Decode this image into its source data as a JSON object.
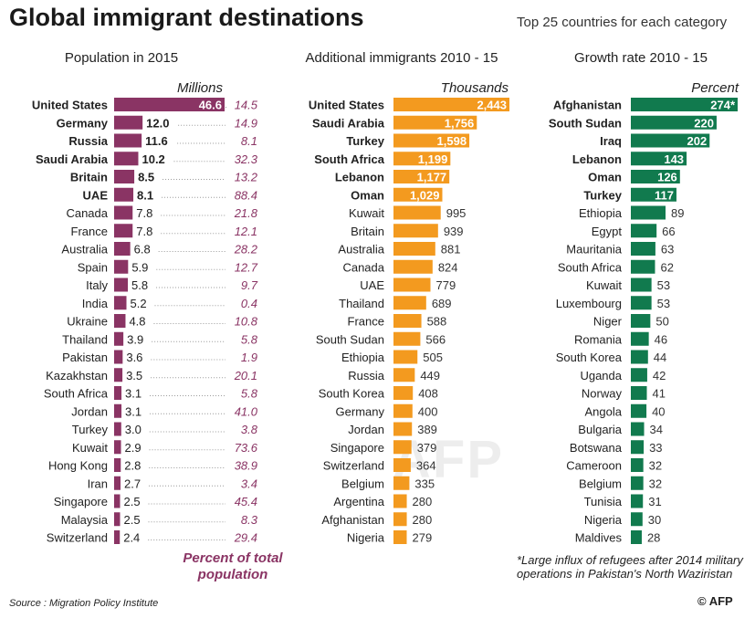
{
  "header": {
    "title": "Global immigrant destinations",
    "subtitle": "Top 25 countries for each category"
  },
  "footer": {
    "source": "Source : Migration Policy Institute",
    "credit": "© AFP",
    "watermark": "AFP",
    "footnote": "*Large influx of refugees after 2014 military operations in Pakistan's North Waziristan",
    "percent_note": "Percent of total population"
  },
  "colors": {
    "population": "#8a3464",
    "additional": "#f39a1f",
    "growth": "#117a4e",
    "pct_text": "#8a3464"
  },
  "chart_data": [
    {
      "type": "bar",
      "title": "Population in 2015",
      "unit_label": "Millions",
      "bold_top": 6,
      "categories": [
        "United States",
        "Germany",
        "Russia",
        "Saudi Arabia",
        "Britain",
        "UAE",
        "Canada",
        "France",
        "Australia",
        "Spain",
        "Italy",
        "India",
        "Ukraine",
        "Thailand",
        "Pakistan",
        "Kazakhstan",
        "South Africa",
        "Jordan",
        "Turkey",
        "Kuwait",
        "Hong Kong",
        "Iran",
        "Singapore",
        "Malaysia",
        "Switzerland"
      ],
      "values": [
        46.6,
        12.0,
        11.6,
        10.2,
        8.5,
        8.1,
        7.8,
        7.8,
        6.8,
        5.9,
        5.8,
        5.2,
        4.8,
        3.9,
        3.6,
        3.5,
        3.1,
        3.1,
        3.0,
        2.9,
        2.8,
        2.7,
        2.5,
        2.5,
        2.4
      ],
      "value_labels": [
        "46.6",
        "12.0",
        "11.6",
        "10.2",
        "8.5",
        "8.1",
        "7.8",
        "7.8",
        "6.8",
        "5.9",
        "5.8",
        "5.2",
        "4.8",
        "3.9",
        "3.6",
        "3.5",
        "3.1",
        "3.1",
        "3.0",
        "2.9",
        "2.8",
        "2.7",
        "2.5",
        "2.5",
        "2.4"
      ],
      "percent_of_population": [
        "14.5",
        "14.9",
        "8.1",
        "32.3",
        "13.2",
        "88.4",
        "21.8",
        "12.1",
        "28.2",
        "12.7",
        "9.7",
        "0.4",
        "10.8",
        "5.8",
        "1.9",
        "20.1",
        "5.8",
        "41.0",
        "3.8",
        "73.6",
        "38.9",
        "3.4",
        "45.4",
        "8.3",
        "29.4"
      ],
      "xlim": [
        0,
        46.6
      ]
    },
    {
      "type": "bar",
      "title": "Additional immigrants 2010 - 15",
      "unit_label": "Thousands",
      "bold_top": 6,
      "categories": [
        "United States",
        "Saudi Arabia",
        "Turkey",
        "South Africa",
        "Lebanon",
        "Oman",
        "Kuwait",
        "Britain",
        "Australia",
        "Canada",
        "UAE",
        "Thailand",
        "France",
        "South Sudan",
        "Ethiopia",
        "Russia",
        "South Korea",
        "Germany",
        "Jordan",
        "Singapore",
        "Switzerland",
        "Belgium",
        "Argentina",
        "Afghanistan",
        "Nigeria"
      ],
      "values": [
        2443,
        1756,
        1598,
        1199,
        1177,
        1029,
        995,
        939,
        881,
        824,
        779,
        689,
        588,
        566,
        505,
        449,
        408,
        400,
        389,
        379,
        364,
        335,
        280,
        280,
        279
      ],
      "value_labels": [
        "2,443",
        "1,756",
        "1,598",
        "1,199",
        "1,177",
        "1,029",
        "995",
        "939",
        "881",
        "824",
        "779",
        "689",
        "588",
        "566",
        "505",
        "449",
        "408",
        "400",
        "389",
        "379",
        "364",
        "335",
        "280",
        "280",
        "279"
      ],
      "xlim": [
        0,
        2443
      ]
    },
    {
      "type": "bar",
      "title": "Growth rate  2010 - 15",
      "unit_label": "Percent",
      "bold_top": 6,
      "categories": [
        "Afghanistan",
        "South Sudan",
        "Iraq",
        "Lebanon",
        "Oman",
        "Turkey",
        "Ethiopia",
        "Egypt",
        "Mauritania",
        "South Africa",
        "Kuwait",
        "Luxembourg",
        "Niger",
        "Romania",
        "South Korea",
        "Uganda",
        "Norway",
        "Angola",
        "Bulgaria",
        "Botswana",
        "Cameroon",
        "Belgium",
        "Tunisia",
        "Nigeria",
        "Maldives"
      ],
      "values": [
        274,
        220,
        202,
        143,
        126,
        117,
        89,
        66,
        63,
        62,
        53,
        53,
        50,
        46,
        44,
        42,
        41,
        40,
        34,
        33,
        32,
        32,
        31,
        30,
        28
      ],
      "value_labels": [
        "274*",
        "220",
        "202",
        "143",
        "126",
        "117",
        "89",
        "66",
        "63",
        "62",
        "53",
        "53",
        "50",
        "46",
        "44",
        "42",
        "41",
        "40",
        "34",
        "33",
        "32",
        "32",
        "31",
        "30",
        "28"
      ],
      "xlim": [
        0,
        274
      ]
    }
  ]
}
